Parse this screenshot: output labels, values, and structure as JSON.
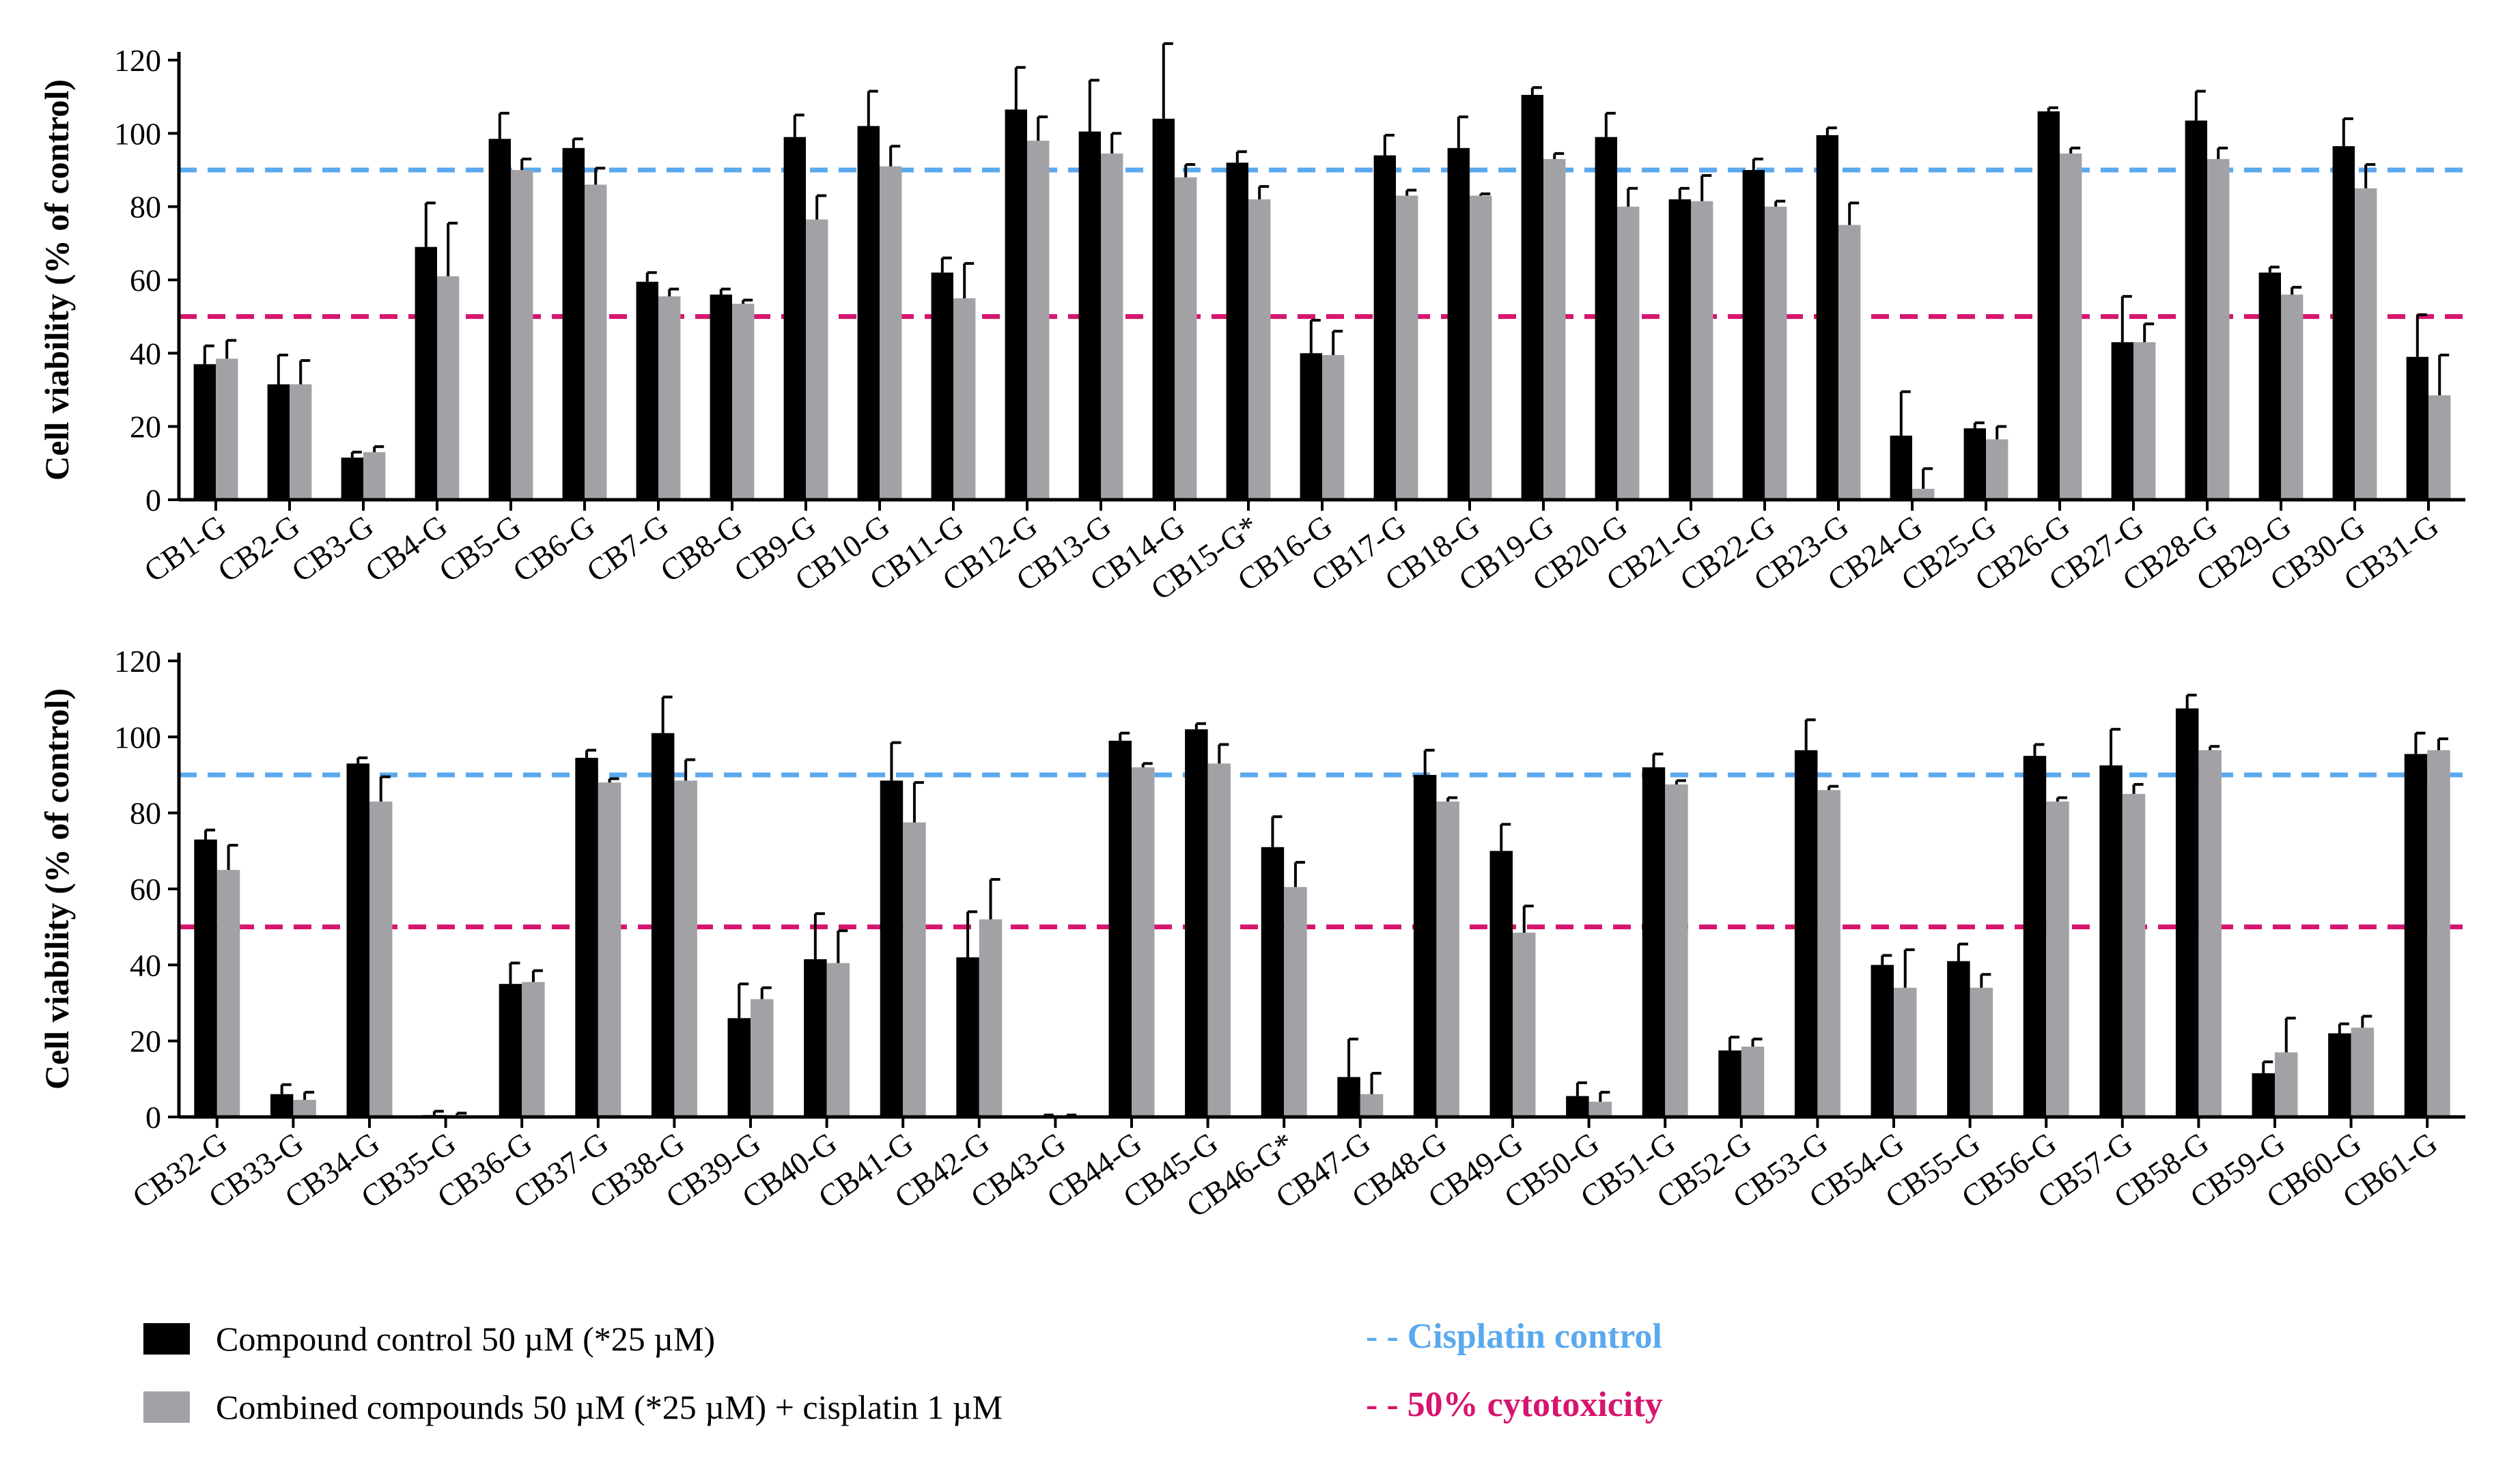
{
  "colors": {
    "compound": "#000000",
    "combined": "#a2a2a6",
    "cisplatin_line": "#5aa9ee",
    "cytotoxicity_line": "#d6156e",
    "axis": "#000000"
  },
  "legend": {
    "compound_label": "Compound control 50 µM (*25 µM)",
    "combined_label": "Combined compounds 50 µM (*25 µM) + cisplatin 1 µM",
    "cisplatin_label": "- - Cisplatin control",
    "cytotoxicity_label": "- - 50% cytotoxicity"
  },
  "chart_data": [
    {
      "type": "bar",
      "ylabel": "Cell viability (% of control)",
      "ylim": [
        0,
        120
      ],
      "yticks": [
        0,
        20,
        40,
        60,
        80,
        100,
        120
      ],
      "reference_lines": [
        {
          "name": "Cisplatin control",
          "value": 90
        },
        {
          "name": "50% cytotoxicity",
          "value": 50
        }
      ],
      "categories": [
        "CB1-G",
        "CB2-G",
        "CB3-G",
        "CB4-G",
        "CB5-G",
        "CB6-G",
        "CB7-G",
        "CB8-G",
        "CB9-G",
        "CB10-G",
        "CB11-G",
        "CB12-G",
        "CB13-G",
        "CB14-G",
        "CB15-G*",
        "CB16-G",
        "CB17-G",
        "CB18-G",
        "CB19-G",
        "CB20-G",
        "CB21-G",
        "CB22-G",
        "CB23-G",
        "CB24-G",
        "CB25-G",
        "CB26-G",
        "CB27-G",
        "CB28-G",
        "CB29-G",
        "CB30-G",
        "CB31-G"
      ],
      "series": [
        {
          "name": "Compound control 50 µM (*25 µM)",
          "values": [
            37,
            31.5,
            11.5,
            69,
            98.5,
            96,
            59.5,
            56,
            99,
            102,
            62,
            106.5,
            100.5,
            104,
            92,
            40,
            94,
            96,
            110.5,
            99,
            82,
            90,
            99.5,
            17.5,
            19.5,
            106,
            43,
            103.5,
            62,
            96.5,
            39
          ],
          "errors": [
            5,
            8,
            1.5,
            12,
            7,
            2.5,
            2.5,
            1.5,
            6,
            9.5,
            4,
            11.5,
            14,
            20.5,
            3,
            9,
            5.5,
            8.5,
            2,
            6.5,
            3,
            3,
            2,
            12,
            1.5,
            1,
            12.5,
            8,
            1.5,
            7.5,
            11.5
          ]
        },
        {
          "name": "Combined compounds 50 µM (*25 µM) + cisplatin 1 µM",
          "values": [
            38.5,
            31.5,
            13,
            61,
            90,
            86,
            55.5,
            53.5,
            76.5,
            91,
            55,
            98,
            94.5,
            88,
            82,
            39.5,
            83,
            83,
            93,
            80,
            81.5,
            80,
            75,
            3,
            16.5,
            94.5,
            43,
            93,
            56,
            85,
            28.5
          ],
          "errors": [
            5,
            6.5,
            1.5,
            14.5,
            3,
            4.5,
            2,
            1,
            6.5,
            5.5,
            9.5,
            6.5,
            5.5,
            3.5,
            3.5,
            6.5,
            1.5,
            0.5,
            1.5,
            5,
            7,
            1.5,
            6,
            5.5,
            3.5,
            1.5,
            5,
            3,
            2,
            6.5,
            11
          ]
        }
      ]
    },
    {
      "type": "bar",
      "ylabel": "Cell viability (% of control)",
      "ylim": [
        0,
        120
      ],
      "yticks": [
        0,
        20,
        40,
        60,
        80,
        100,
        120
      ],
      "reference_lines": [
        {
          "name": "Cisplatin control",
          "value": 90
        },
        {
          "name": "50% cytotoxicity",
          "value": 50
        }
      ],
      "categories": [
        "CB32-G",
        "CB33-G",
        "CB34-G",
        "CB35-G",
        "CB36-G",
        "CB37-G",
        "CB38-G",
        "CB39-G",
        "CB40-G",
        "CB41-G",
        "CB42-G",
        "CB43-G",
        "CB44-G",
        "CB45-G",
        "CB46-G*",
        "CB47-G",
        "CB48-G",
        "CB49-G",
        "CB50-G",
        "CB51-G",
        "CB52-G",
        "CB53-G",
        "CB54-G",
        "CB55-G",
        "CB56-G",
        "CB57-G",
        "CB58-G",
        "CB59-G",
        "CB60-G",
        "CB61-G"
      ],
      "series": [
        {
          "name": "Compound control 50 µM (*25 µM)",
          "values": [
            73,
            6,
            93,
            0.5,
            35,
            94.5,
            101,
            26,
            41.5,
            88.5,
            42,
            0.3,
            99,
            102,
            71,
            10.5,
            90,
            70,
            5.5,
            92,
            17.5,
            96.5,
            40,
            41,
            95,
            92.5,
            107.5,
            11.5,
            22,
            95.5
          ],
          "errors": [
            2.5,
            2.5,
            1.5,
            1,
            5.5,
            2,
            9.5,
            9,
            12,
            10,
            12,
            0.2,
            2,
            1.5,
            8,
            10,
            6.5,
            7,
            3.5,
            3.5,
            3.5,
            8,
            2.5,
            4.5,
            3,
            9.5,
            3.5,
            3,
            2.5,
            5.5
          ]
        },
        {
          "name": "Combined compounds 50 µM (*25 µM) + cisplatin 1 µM",
          "values": [
            65,
            4.5,
            83,
            0.5,
            35.5,
            88,
            88.5,
            31,
            40.5,
            77.5,
            52,
            0.3,
            92,
            93,
            60.5,
            6,
            83,
            48.5,
            4,
            87.5,
            18.5,
            86,
            34,
            34,
            83,
            85,
            96.5,
            17,
            23.5,
            96.5
          ],
          "errors": [
            6.5,
            2,
            6.5,
            0.5,
            3,
            1,
            5.5,
            3,
            8.5,
            10.5,
            10.5,
            0.2,
            1,
            5,
            6.5,
            5.5,
            1,
            7,
            2.5,
            1,
            2,
            1,
            10,
            3.5,
            1,
            2.5,
            1,
            9,
            3,
            3
          ]
        }
      ]
    }
  ]
}
